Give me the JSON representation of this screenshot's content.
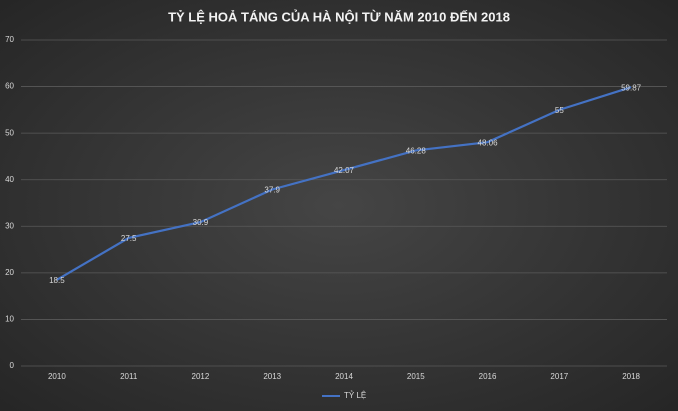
{
  "chart_data": {
    "type": "line",
    "title": "TỶ LỆ HOẢ TÁNG CỦA HÀ NỘI TỪ NĂM 2010 ĐẾN 2018",
    "categories": [
      "2010",
      "2011",
      "2012",
      "2013",
      "2014",
      "2015",
      "2016",
      "2017",
      "2018"
    ],
    "series": [
      {
        "name": "TỶ LỆ",
        "color": "#4472c4",
        "values": [
          18.5,
          27.5,
          30.9,
          37.9,
          42.07,
          46.28,
          48.06,
          55,
          59.87
        ]
      }
    ],
    "ylim": [
      0,
      70
    ],
    "yticks": [
      0,
      10,
      20,
      30,
      40,
      50,
      60,
      70
    ],
    "grid": true,
    "legend": "bottom"
  }
}
